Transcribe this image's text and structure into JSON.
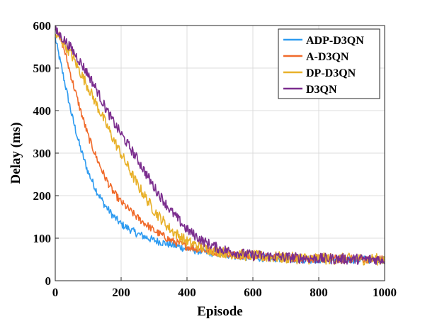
{
  "chart_data": {
    "type": "line",
    "title": "",
    "xlabel": "Episode",
    "ylabel": "Delay (ms)",
    "xlim": [
      0,
      1000
    ],
    "ylim": [
      0,
      600
    ],
    "xticks": [
      0,
      200,
      400,
      600,
      800,
      1000
    ],
    "yticks": [
      0,
      100,
      200,
      300,
      400,
      500,
      600
    ],
    "grid": true,
    "legend_position": "top-right",
    "series": [
      {
        "name": "ADP-D3QN",
        "color": "#2E9BF0",
        "x": [
          0,
          25,
          50,
          75,
          100,
          125,
          150,
          175,
          200,
          250,
          300,
          350,
          400,
          450,
          500,
          550,
          600,
          700,
          800,
          900,
          1000
        ],
        "values": [
          570,
          480,
          390,
          315,
          255,
          212,
          178,
          153,
          133,
          110,
          95,
          85,
          75,
          68,
          63,
          58,
          55,
          52,
          50,
          50,
          50
        ],
        "noise": 9
      },
      {
        "name": "A-D3QN",
        "color": "#F06A2A",
        "x": [
          0,
          25,
          50,
          75,
          100,
          125,
          150,
          175,
          200,
          250,
          300,
          350,
          400,
          450,
          500,
          550,
          600,
          700,
          800,
          900,
          1000
        ],
        "values": [
          600,
          550,
          475,
          405,
          340,
          290,
          245,
          210,
          185,
          148,
          118,
          95,
          80,
          72,
          66,
          61,
          58,
          54,
          52,
          51,
          50
        ],
        "noise": 9
      },
      {
        "name": "DP-D3QN",
        "color": "#E8B12A",
        "x": [
          0,
          25,
          50,
          75,
          100,
          125,
          150,
          175,
          200,
          250,
          300,
          350,
          400,
          450,
          500,
          550,
          600,
          700,
          800,
          900,
          1000
        ],
        "values": [
          578,
          560,
          530,
          492,
          455,
          415,
          375,
          335,
          298,
          225,
          165,
          120,
          92,
          77,
          68,
          62,
          58,
          54,
          52,
          51,
          50
        ],
        "noise": 13
      },
      {
        "name": "D3QN",
        "color": "#7B2D8E",
        "x": [
          0,
          25,
          50,
          75,
          100,
          125,
          150,
          175,
          200,
          250,
          300,
          350,
          400,
          450,
          500,
          550,
          600,
          700,
          800,
          900,
          1000
        ],
        "values": [
          588,
          568,
          545,
          515,
          485,
          450,
          410,
          375,
          345,
          285,
          220,
          165,
          120,
          92,
          75,
          66,
          60,
          55,
          52,
          51,
          50
        ],
        "noise": 12
      }
    ]
  }
}
